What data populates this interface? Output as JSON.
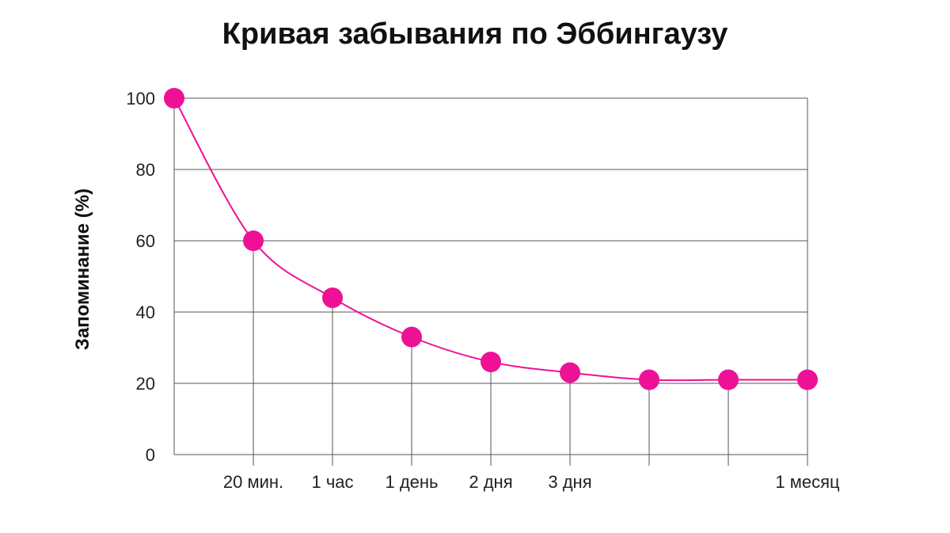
{
  "chart_data": {
    "type": "line",
    "title": "Кривая забывания по Эббингаузу",
    "xlabel": "",
    "ylabel": "Запоминание (%)",
    "ylim": [
      0,
      100
    ],
    "yticks": [
      0,
      20,
      40,
      60,
      80,
      100
    ],
    "grid": true,
    "legend": "none",
    "series_color": "#ee1196",
    "grid_color": "#555555",
    "x_tick_labels": [
      "",
      "20 мин.",
      "1 час",
      "1 день",
      "2 дня",
      "3 дня",
      "",
      "",
      "1 месяц"
    ],
    "values": [
      100,
      60,
      44,
      33,
      26,
      23,
      21,
      21,
      21
    ]
  }
}
